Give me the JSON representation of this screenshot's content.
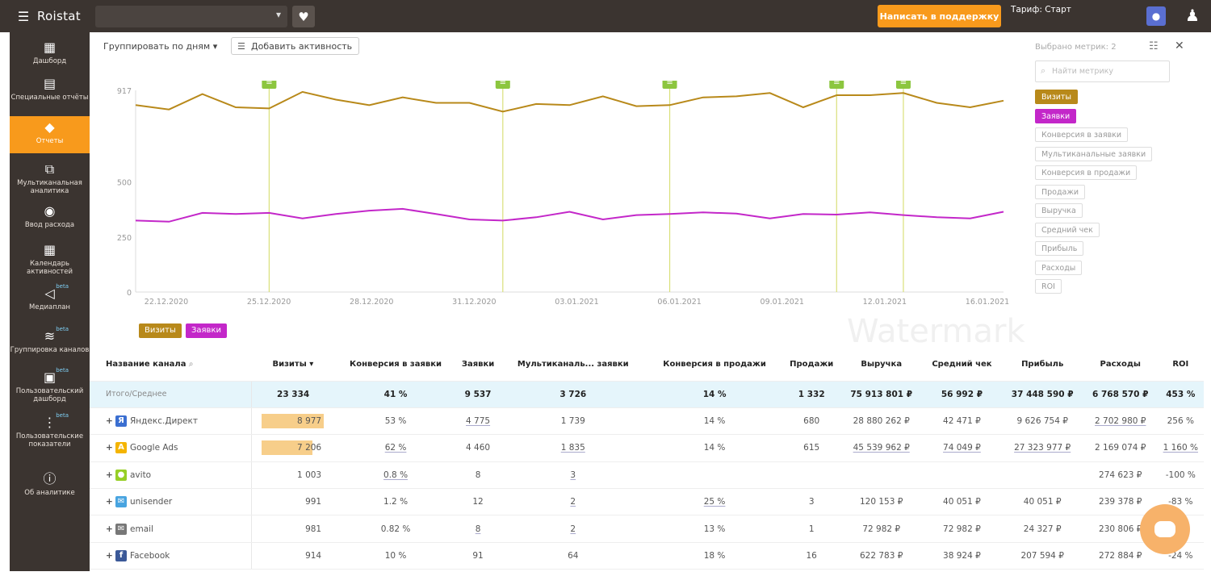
{
  "topbar": {
    "logo": "Roistat",
    "support_label": "Написать в поддержку",
    "tariff": "Тариф: Старт"
  },
  "sidebar": {
    "items": [
      {
        "label": "Дашборд",
        "icon": "dashboard-icon"
      },
      {
        "label": "Специальные отчёты",
        "icon": "clipboard-icon"
      },
      {
        "label": "Отчеты",
        "icon": "reports-icon",
        "active": true
      },
      {
        "label": "Мультиканальная аналитика",
        "icon": "hierarchy-icon"
      },
      {
        "label": "Ввод расхода",
        "icon": "money-icon"
      },
      {
        "label": "Календарь активностей",
        "icon": "calendar-icon"
      },
      {
        "label": "Медиаплан",
        "icon": "megaphone-icon",
        "beta": "beta"
      },
      {
        "label": "Группировка каналов",
        "icon": "layers-icon",
        "beta": "beta"
      },
      {
        "label": "Пользовательский дашборд",
        "icon": "custom-dashboard-icon",
        "beta": "beta"
      },
      {
        "label": "Пользовательские показатели",
        "icon": "custom-metrics-icon",
        "beta": "beta"
      },
      {
        "label": "Об аналитике",
        "icon": "info-icon"
      }
    ]
  },
  "toolbar": {
    "group_by": "Группировать по дням",
    "add_activity": "Добавить активность"
  },
  "metrics_panel": {
    "count": "Выбрано метрик: 2",
    "search_placeholder": "Найти метрику",
    "items": [
      "Визиты",
      "Заявки",
      "Конверсия в заявки",
      "Мультиканальные заявки",
      "Конверсия в продажи",
      "Продажи",
      "Выручка",
      "Средний чек",
      "Прибыль",
      "Расходы",
      "ROI"
    ]
  },
  "colors": {
    "visits": "#b8891a",
    "leads": "#c327c9",
    "accent": "#f89a1c",
    "sidebar": "#3b3430"
  },
  "chart_data": {
    "type": "line",
    "y_ticks": [
      "917",
      "500",
      "250",
      "0"
    ],
    "ylim": [
      0,
      917
    ],
    "x_ticks": [
      "22.12.2020",
      "25.12.2020",
      "28.12.2020",
      "31.12.2020",
      "03.01.2021",
      "06.01.2021",
      "09.01.2021",
      "12.01.2021",
      "16.01.2021"
    ],
    "series": [
      {
        "name": "Визиты",
        "values": [
          850,
          830,
          900,
          840,
          835,
          910,
          875,
          850,
          885,
          860,
          860,
          820,
          855,
          850,
          890,
          845,
          850,
          885,
          890,
          905,
          840,
          895,
          895,
          905,
          860,
          840,
          870
        ]
      },
      {
        "name": "Заявки",
        "values": [
          325,
          320,
          360,
          355,
          360,
          335,
          355,
          370,
          378,
          355,
          330,
          325,
          340,
          365,
          330,
          350,
          355,
          362,
          357,
          335,
          355,
          352,
          362,
          350,
          340,
          335,
          365
        ]
      }
    ],
    "activity_marker_indices": [
      4,
      11,
      16,
      21,
      23
    ]
  },
  "legend": [
    "Визиты",
    "Заявки"
  ],
  "watermark": "Watermark",
  "table": {
    "headers": [
      "Название канала",
      "Визиты ▾",
      "Конверсия в заявки",
      "Заявки",
      "Мультиканаль... заявки",
      "Конверсия в продажи",
      "Продажи",
      "Выручка",
      "Средний чек",
      "Прибыль",
      "Расходы",
      "ROI"
    ],
    "total": {
      "name": "Итого/Среднее",
      "cells": [
        "23 334",
        "41 %",
        "9 537",
        "3 726",
        "14 %",
        "1 332",
        "75 913 801 ₽",
        "56 992 ₽",
        "37 448 590 ₽",
        "6 768 570 ₽",
        "453 %"
      ]
    },
    "rows": [
      {
        "name": "Яндекс.Директ",
        "icon": "yandex-direct-icon",
        "visits_share": 0.99,
        "cells": [
          "8 977",
          "53 %",
          "4 775",
          "1 739",
          "14 %",
          "680",
          "28 880 262 ₽",
          "42 471 ₽",
          "9 626 754 ₽",
          "2 702 980 ₽",
          "256 %"
        ]
      },
      {
        "name": "Google Ads",
        "icon": "google-ads-icon",
        "visits_share": 0.8,
        "cells": [
          "7 206",
          "62 %",
          "4 460",
          "1 835",
          "14 %",
          "615",
          "45 539 962 ₽",
          "74 049 ₽",
          "27 323 977 ₽",
          "2 169 074 ₽",
          "1 160 %"
        ]
      },
      {
        "name": "avito",
        "icon": "avito-icon",
        "cells": [
          "1 003",
          "0.8 %",
          "8",
          "3",
          "",
          "",
          "",
          "",
          "",
          "274 623 ₽",
          "-100 %"
        ]
      },
      {
        "name": "unisender",
        "icon": "unisender-icon",
        "cells": [
          "991",
          "1.2 %",
          "12",
          "2",
          "25 %",
          "3",
          "120 153 ₽",
          "40 051 ₽",
          "40 051 ₽",
          "239 378 ₽",
          "-83 %"
        ]
      },
      {
        "name": "email",
        "icon": "email-icon",
        "cells": [
          "981",
          "0.82 %",
          "8",
          "2",
          "13 %",
          "1",
          "72 982 ₽",
          "72 982 ₽",
          "24 327 ₽",
          "230 806 ₽",
          ""
        ]
      },
      {
        "name": "Facebook",
        "icon": "facebook-icon",
        "cells": [
          "914",
          "10 %",
          "91",
          "64",
          "18 %",
          "16",
          "622 783 ₽",
          "38 924 ₽",
          "207 594 ₽",
          "272 884 ₽",
          "-24 %"
        ]
      }
    ]
  }
}
